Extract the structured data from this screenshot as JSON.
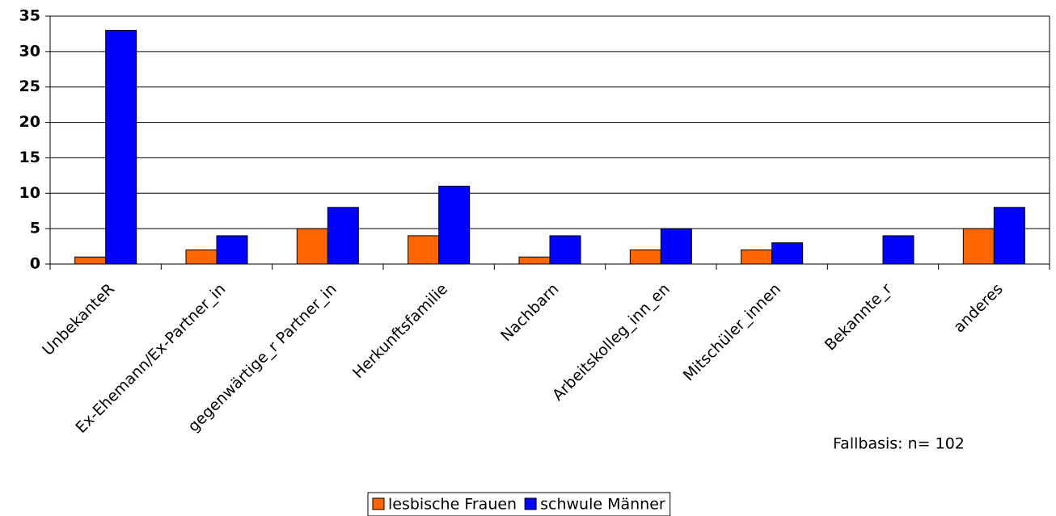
{
  "chart_data": {
    "type": "bar",
    "categories": [
      "UnbekanteR",
      "Ex-Ehemann/Ex-Partner_in",
      "gegenwärtige_r Partner_in",
      "Herkunftsfamilie",
      "Nachbarn",
      "Arbeitskolleg_inn_en",
      "Mitschüler_innen",
      "Bekannte_r",
      "anderes"
    ],
    "series": [
      {
        "name": "lesbische Frauen",
        "color": "#ff6600",
        "values": [
          1,
          2,
          5,
          4,
          1,
          2,
          2,
          0,
          5
        ]
      },
      {
        "name": "schwule Männer",
        "color": "#0000ff",
        "values": [
          33,
          4,
          8,
          11,
          4,
          5,
          3,
          4,
          8
        ]
      }
    ],
    "ylim": [
      0,
      35
    ],
    "yticks": [
      0,
      5,
      10,
      15,
      20,
      25,
      30,
      35
    ],
    "grid": true,
    "annotation": "Fallbasis: n= 102",
    "legend": "bottom"
  }
}
